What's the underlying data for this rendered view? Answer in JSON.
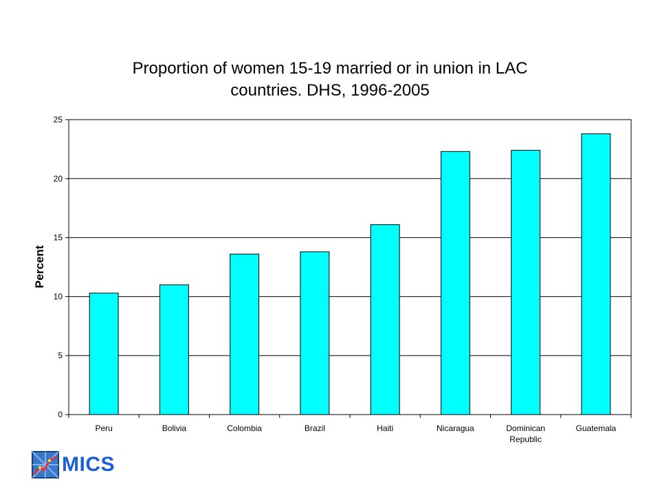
{
  "chart_data": {
    "type": "bar",
    "title_lines": [
      "Proportion of women 15-19 married or in union in LAC",
      "countries. DHS, 1996-2005"
    ],
    "ylabel": "Percent",
    "xlabel": "",
    "categories": [
      [
        "Peru"
      ],
      [
        "Bolivia"
      ],
      [
        "Colombia"
      ],
      [
        "Brazil"
      ],
      [
        "Haiti"
      ],
      [
        "Nicaragua"
      ],
      [
        "Dominican",
        "Republic"
      ],
      [
        "Guatemala"
      ]
    ],
    "values": [
      10.3,
      11.0,
      13.6,
      13.8,
      16.1,
      22.3,
      22.4,
      23.8
    ],
    "ylim": [
      0,
      25
    ],
    "yticks": [
      0,
      5,
      10,
      15,
      20,
      25
    ],
    "grid": true,
    "bar_color": "#00FFFF",
    "bar_border_color": "#000000"
  },
  "logo": {
    "text": "MICS",
    "icon": "mics-chart-logo-icon",
    "color": "#1A5FD6"
  }
}
